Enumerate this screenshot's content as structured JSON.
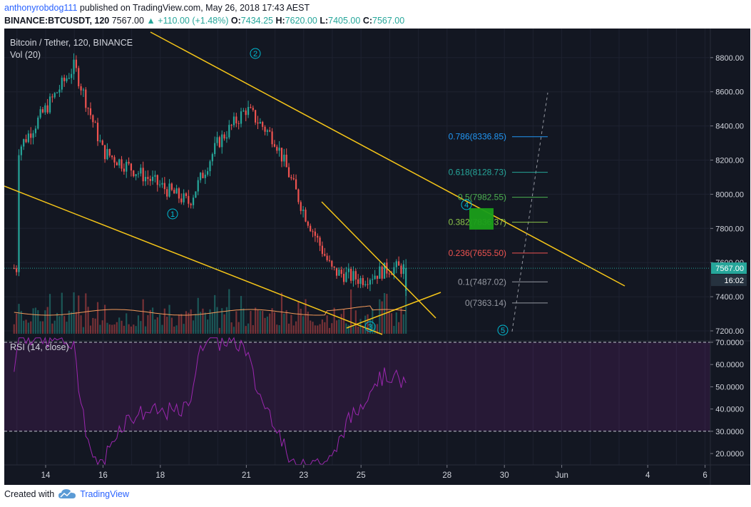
{
  "header": {
    "author": "anthonyrobdog111",
    "published": "published on TradingView.com, May 26, 2018 17:43 AEST",
    "symbol": "BINANCE:BTCUSDT, 120",
    "price": "7567.00",
    "change": "+110.00 (+1.48%)",
    "o_label": "O:",
    "o_value": "7434.25",
    "h_label": "H:",
    "h_value": "7620.00",
    "l_label": "L:",
    "l_value": "7405.00",
    "c_label": "C:",
    "c_value": "7567.00"
  },
  "footer": {
    "created_with": "Created with",
    "brand": "TradingView"
  },
  "colors": {
    "background": "#131722",
    "up": "#26a69a",
    "down": "#ef5350",
    "trendline": "#f5c518",
    "rsi": "#9c27b0",
    "volume_ma": "#f59b5b"
  },
  "chart_data": {
    "type": "candlestick",
    "title": "Bitcoin / Tether, 120, BINANCE",
    "volume_label": "Vol (20)",
    "rsi_label": "RSI (14, close)",
    "price_axis": {
      "min": 7200,
      "max": 8800,
      "ticks": [
        "8800.00",
        "8600.00",
        "8400.00",
        "8200.00",
        "8000.00",
        "7800.00",
        "7600.00",
        "7400.00",
        "7200.00"
      ]
    },
    "rsi_axis": {
      "ticks": [
        "70.0000",
        "60.0000",
        "50.0000",
        "40.0000",
        "30.0000",
        "20.0000"
      ],
      "overbought": 70,
      "oversold": 30
    },
    "time_axis": [
      "14",
      "16",
      "18",
      "21",
      "23",
      "25",
      "28",
      "30",
      "Jun",
      "4",
      "6"
    ],
    "last_price": "7567.00",
    "countdown": "16:02",
    "key_closes": [
      {
        "date": "May 13",
        "close": 8250
      },
      {
        "date": "May 15",
        "close": 8750
      },
      {
        "date": "May 16",
        "close": 8250
      },
      {
        "date": "May 18",
        "close": 8050
      },
      {
        "date": "May 19",
        "close": 7950
      },
      {
        "date": "May 20",
        "close": 8300
      },
      {
        "date": "May 21",
        "close": 8500
      },
      {
        "date": "May 22",
        "close": 8320
      },
      {
        "date": "May 23",
        "close": 7900
      },
      {
        "date": "May 24",
        "close": 7550
      },
      {
        "date": "May 25",
        "close": 7500
      },
      {
        "date": "May 26",
        "close": 7567
      }
    ],
    "fib_levels": [
      {
        "ratio": "0.786",
        "label": "0.786(8336.85)",
        "price": 8336.85,
        "color": "#2196f3"
      },
      {
        "ratio": "0.618",
        "label": "0.618(8128.73)",
        "price": 8128.73,
        "color": "#26a69a"
      },
      {
        "ratio": "0.5",
        "label": "0.5(7982.55)",
        "price": 7982.55,
        "color": "#4caf50"
      },
      {
        "ratio": "0.382",
        "label": "0.382(7836.37)",
        "price": 7836.37,
        "color": "#8bc34a"
      },
      {
        "ratio": "0.236",
        "label": "0.236(7655.50)",
        "price": 7655.5,
        "color": "#ef5350"
      },
      {
        "ratio": "0.1",
        "label": "0.1(7487.02)",
        "price": 7487.02,
        "color": "#9598a1"
      },
      {
        "ratio": "0",
        "label": "0(7363.14)",
        "price": 7363.14,
        "color": "#9598a1"
      }
    ],
    "wave_labels": [
      "1",
      "2",
      "3",
      "4",
      "5"
    ]
  }
}
